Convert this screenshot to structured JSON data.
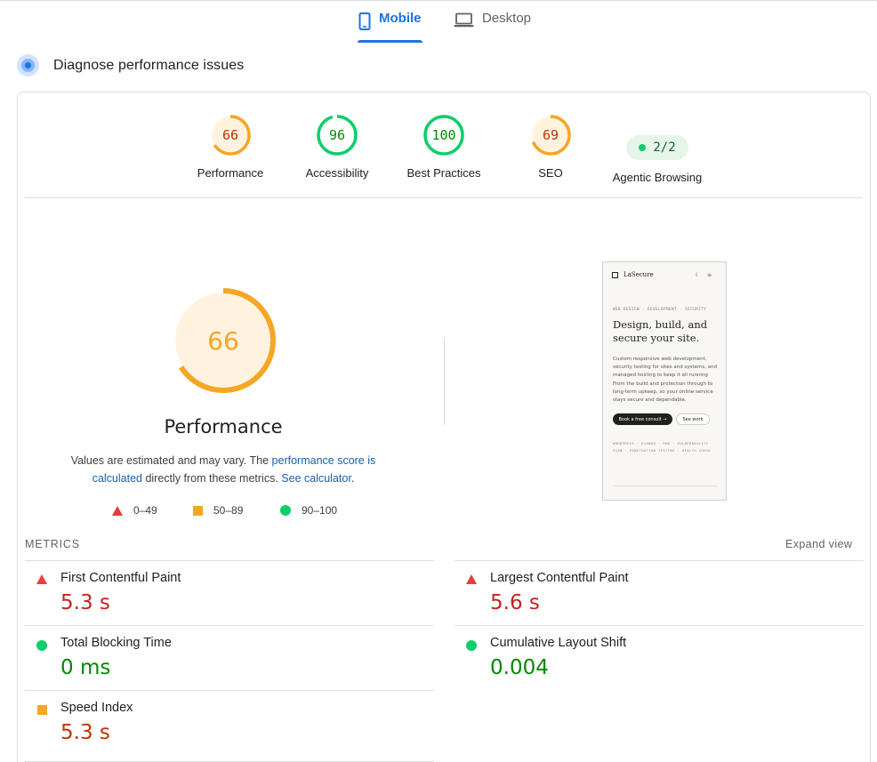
{
  "tabs": {
    "mobile": "Mobile",
    "desktop": "Desktop"
  },
  "section": {
    "title": "Diagnose performance issues"
  },
  "scores": [
    {
      "label": "Performance",
      "value": "66",
      "score": 66,
      "color": "#f5a623",
      "text_color": "#c33300",
      "bg": "#fff3e0"
    },
    {
      "label": "Accessibility",
      "value": "96",
      "score": 96,
      "color": "#0cce6b",
      "text_color": "#008800",
      "bg": "#ffffff"
    },
    {
      "label": "Best Practices",
      "value": "100",
      "score": 100,
      "color": "#0cce6b",
      "text_color": "#008800",
      "bg": "#ffffff"
    },
    {
      "label": "SEO",
      "value": "69",
      "score": 69,
      "color": "#f5a623",
      "text_color": "#c33300",
      "bg": "#fff3e0"
    }
  ],
  "agentic": {
    "label": "Agentic Browsing",
    "value": "2/2"
  },
  "main_gauge": {
    "value": "66",
    "score": 66,
    "title": "Performance"
  },
  "note": {
    "prefix": "Values are estimated and may vary. The ",
    "link1": "performance score is calculated",
    "middle": " directly from these metrics. ",
    "link2": "See calculator",
    "suffix": "."
  },
  "legend": {
    "fail": "0–49",
    "average": "50–89",
    "pass": "90–100"
  },
  "phone": {
    "brand": "LaSecure",
    "icons": "☾ ≡",
    "tagline": "WEB DESIGN · DEVELOPMENT · SECURITY",
    "heading": "Design, build, and secure your site.",
    "body": "Custom responsive web development, security testing for sites and systems, and managed hosting to keep it all running From the build and protection through to long-term upkeep, so your online service stays secure and dependable.",
    "cta_primary": "Book a free consult →",
    "cta_secondary": "See work",
    "tags": "WORDPRESS · DJANGO · PWA · VULNERABILITY SCAN · PENETRATION TESTING · HEALTH CHECK"
  },
  "metrics": {
    "label": "METRICS",
    "expand": "Expand view",
    "items": [
      {
        "name": "First Contentful Paint",
        "value": "5.3 s",
        "status": "fail"
      },
      {
        "name": "Largest Contentful Paint",
        "value": "5.6 s",
        "status": "fail"
      },
      {
        "name": "Total Blocking Time",
        "value": "0 ms",
        "status": "pass"
      },
      {
        "name": "Cumulative Layout Shift",
        "value": "0.004",
        "status": "pass"
      },
      {
        "name": "Speed Index",
        "value": "5.3 s",
        "status": "average"
      }
    ]
  },
  "colors": {
    "fail": "#c5221f",
    "average": "#c33300",
    "pass": "#008800",
    "accent": "#1a73e8"
  }
}
